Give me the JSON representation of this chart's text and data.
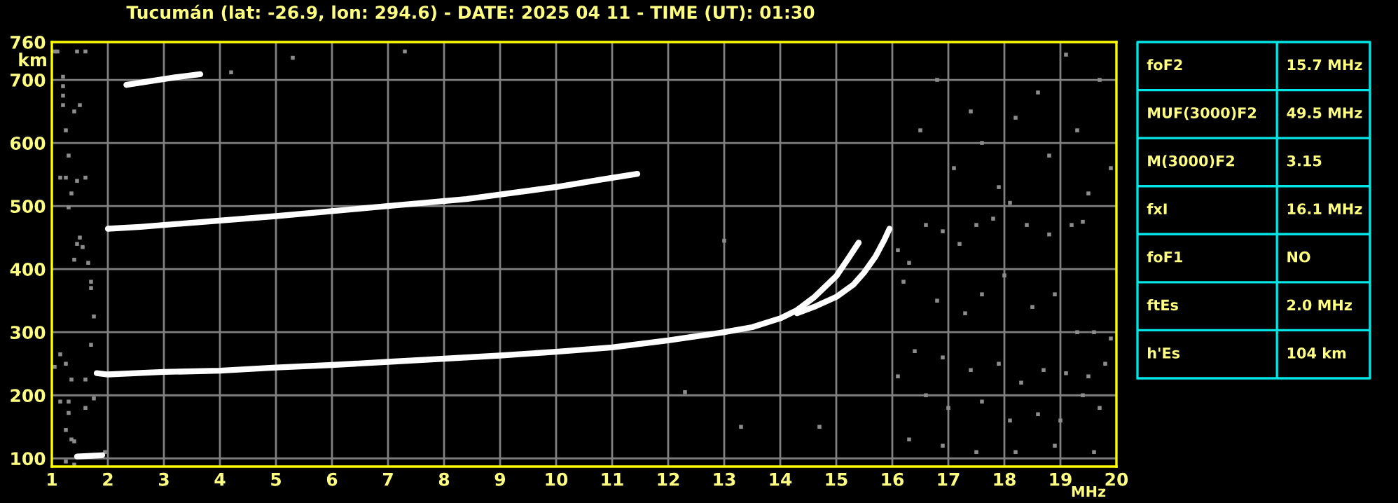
{
  "chart_data": [
    {
      "type": "line",
      "title": "Tucumán (lat: -26.9, lon: 294.6) - DATE: 2025 04 11 - TIME (UT): 01:30",
      "xlabel": "MHz",
      "ylabel": "km",
      "xlim": [
        1,
        20
      ],
      "ylim": [
        87,
        760
      ],
      "xticks": [
        1,
        2,
        3,
        4,
        5,
        6,
        7,
        8,
        9,
        10,
        11,
        12,
        13,
        14,
        15,
        16,
        17,
        18,
        19,
        20
      ],
      "yticks": [
        100,
        200,
        300,
        400,
        500,
        600,
        700,
        760
      ],
      "grid": true,
      "series": [
        {
          "type": "line",
          "color": "#ffffff",
          "x": [
            1.8,
            2,
            3,
            4,
            5,
            6,
            7,
            8,
            9,
            10,
            11,
            12,
            13,
            13.5,
            14,
            14.3,
            14.6,
            15,
            15.2,
            15.4
          ],
          "values": [
            235,
            233,
            237,
            239,
            244,
            248,
            253,
            258,
            263,
            269,
            276,
            287,
            300,
            308,
            322,
            335,
            355,
            389,
            415,
            442
          ]
        },
        {
          "type": "line",
          "color": "#ffffff",
          "x": [
            14.3,
            14.6,
            15,
            15.3,
            15.5,
            15.7,
            15.85,
            15.95
          ],
          "values": [
            330,
            340,
            356,
            375,
            395,
            420,
            445,
            464
          ]
        },
        {
          "type": "line",
          "color": "#ffffff",
          "x": [
            2.0,
            2.58,
            5.0,
            6.75,
            8.4,
            10.07,
            10.8,
            11.45
          ],
          "values": [
            464,
            467,
            484,
            498,
            511,
            531,
            542,
            551
          ]
        },
        {
          "type": "line",
          "color": "#ffffff",
          "x": [
            2.33,
            3.2,
            3.65
          ],
          "values": [
            692,
            704,
            709
          ]
        },
        {
          "type": "line",
          "color": "#ffffff",
          "x": [
            1.45,
            1.9
          ],
          "values": [
            103,
            105
          ]
        },
        {
          "type": "scatter",
          "color": "#8c8c8c",
          "marker": "square",
          "x": [
            1.05,
            1.1,
            1.45,
            1.6,
            1.2,
            1.2,
            1.2,
            1.2,
            1.4,
            1.5,
            1.25,
            1.3,
            1.15,
            1.25,
            1.45,
            1.6,
            1.35,
            1.3,
            1.5,
            1.45,
            1.55,
            1.4,
            1.65,
            1.7,
            1.7,
            1.75,
            1.7,
            1.15,
            1.05,
            1.25,
            1.35,
            1.6,
            1.15,
            1.3,
            1.3,
            1.6,
            1.75,
            1.25,
            1.35,
            1.4,
            1.25,
            1.4,
            1.95,
            5.3,
            7.3,
            4.2,
            13.0,
            13.3,
            14.7,
            12.3,
            16.1,
            16.3,
            16.6,
            16.9,
            17.2,
            17.5,
            17.8,
            18.1,
            18.4,
            18.8,
            19.2,
            19.4,
            16.2,
            16.8,
            17.3,
            17.6,
            18.0,
            18.5,
            18.9,
            19.3,
            19.6,
            19.9,
            16.4,
            16.9,
            17.4,
            17.9,
            18.3,
            18.7,
            19.1,
            19.5,
            19.8,
            16.1,
            16.6,
            17.0,
            17.6,
            18.1,
            18.6,
            19.0,
            19.4,
            19.7,
            16.3,
            16.9,
            17.5,
            18.2,
            18.9,
            19.6,
            17.1,
            17.6,
            18.2,
            18.8,
            19.3,
            19.7,
            16.8,
            17.4,
            18.6,
            19.1,
            16.5,
            17.9,
            19.5,
            19.9
          ],
          "values": [
            745,
            745,
            745,
            745,
            705,
            690,
            675,
            660,
            650,
            660,
            620,
            580,
            545,
            545,
            540,
            545,
            520,
            498,
            450,
            440,
            435,
            415,
            410,
            380,
            370,
            325,
            280,
            265,
            245,
            250,
            225,
            225,
            190,
            190,
            172,
            180,
            195,
            145,
            130,
            127,
            95,
            90,
            110,
            735,
            745,
            712,
            445,
            150,
            150,
            205,
            430,
            410,
            470,
            460,
            440,
            470,
            480,
            505,
            470,
            455,
            470,
            475,
            380,
            350,
            330,
            360,
            390,
            340,
            360,
            300,
            300,
            290,
            270,
            260,
            240,
            250,
            220,
            240,
            235,
            230,
            250,
            230,
            200,
            180,
            190,
            160,
            170,
            160,
            200,
            180,
            130,
            120,
            110,
            110,
            120,
            110,
            560,
            600,
            640,
            580,
            620,
            700,
            700,
            650,
            680,
            740,
            620,
            530,
            520,
            560
          ]
        }
      ]
    },
    {
      "type": "other",
      "annotations": [
        "foF2",
        "15.7 MHz",
        "MUF(3000)F2",
        "49.5 MHz",
        "M(3000)F2",
        "3.15",
        "fxI",
        "16.1 MHz",
        "foF1",
        "NO",
        "ftEs",
        "2.0 MHz",
        "h'Es",
        "104 km"
      ]
    }
  ]
}
